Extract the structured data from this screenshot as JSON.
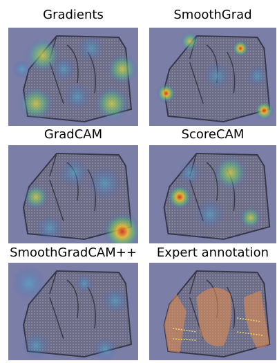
{
  "panels": [
    {
      "title": "Gradients"
    },
    {
      "title": "SmoothGrad"
    },
    {
      "title": "GradCAM"
    },
    {
      "title": "ScoreCAM"
    },
    {
      "title": "SmoothGradCAM++"
    },
    {
      "title": "Expert annotation"
    }
  ]
}
